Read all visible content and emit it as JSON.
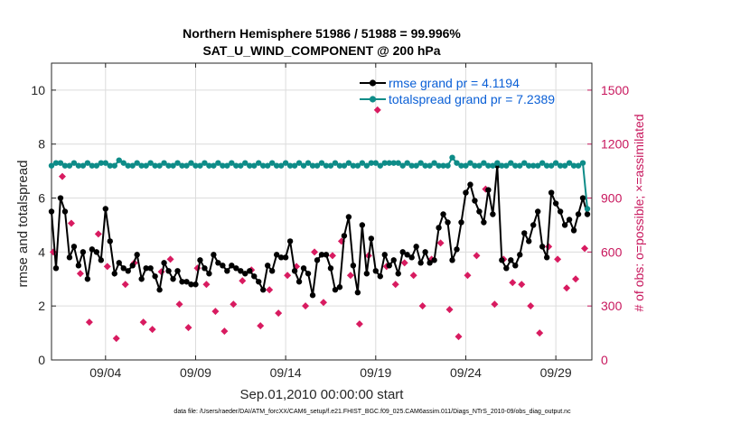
{
  "chart_data": {
    "type": "line",
    "title": "Northern Hemisphere 51986 / 51988 = 99.996%",
    "subtitle": "SAT_U_WIND_COMPONENT @ 200 hPa",
    "xlabel": "Sep.01,2010 00:00:00 start",
    "ylabel": "rmse and totalspread",
    "ylabel_right": "# of obs: o=possible; ×=assimilated",
    "xlim": [
      1,
      31.0
    ],
    "ylim": [
      0,
      11
    ],
    "ylim_right": [
      0,
      1650
    ],
    "x_ticks": [
      4,
      9,
      14,
      19,
      24,
      29
    ],
    "x_tick_labels": [
      "09/04",
      "09/09",
      "09/14",
      "09/19",
      "09/24",
      "09/29"
    ],
    "y_ticks": [
      0,
      2,
      4,
      6,
      8,
      10
    ],
    "y_ticks_right": [
      0,
      300,
      600,
      900,
      1200,
      1500
    ],
    "grid": true,
    "legend_position": "top-right",
    "footnote": "data file: /Users/raeder/DAI/ATM_forcXX/CAM6_setup/f.e21.FHIST_BGC.f09_025.CAM6assim.011/Diags_NTrS_2010-09/obs_diag_output.nc",
    "series": [
      {
        "name": "rmse grand pr = 4.1194",
        "color": "#000000",
        "marker": "circle",
        "x": [
          1.0,
          1.25,
          1.5,
          1.75,
          2.0,
          2.25,
          2.5,
          2.75,
          3.0,
          3.25,
          3.5,
          3.75,
          4.0,
          4.25,
          4.5,
          4.75,
          5.0,
          5.25,
          5.5,
          5.75,
          6.0,
          6.25,
          6.5,
          6.75,
          7.0,
          7.25,
          7.5,
          7.75,
          8.0,
          8.25,
          8.5,
          8.75,
          9.0,
          9.25,
          9.5,
          9.75,
          10.0,
          10.25,
          10.5,
          10.75,
          11.0,
          11.25,
          11.5,
          11.75,
          12.0,
          12.25,
          12.5,
          12.75,
          13.0,
          13.25,
          13.5,
          13.75,
          14.0,
          14.25,
          14.5,
          14.75,
          15.0,
          15.25,
          15.5,
          15.75,
          16.0,
          16.25,
          16.5,
          16.75,
          17.0,
          17.25,
          17.5,
          17.75,
          18.0,
          18.25,
          18.5,
          18.75,
          19.0,
          19.25,
          19.5,
          19.75,
          20.0,
          20.25,
          20.5,
          20.75,
          21.0,
          21.25,
          21.5,
          21.75,
          22.0,
          22.25,
          22.5,
          22.75,
          23.0,
          23.25,
          23.5,
          23.75,
          24.0,
          24.25,
          24.5,
          24.75,
          25.0,
          25.25,
          25.5,
          25.75,
          26.0,
          26.25,
          26.5,
          26.75,
          27.0,
          27.25,
          27.5,
          27.75,
          28.0,
          28.25,
          28.5,
          28.75,
          29.0,
          29.25,
          29.5,
          29.75,
          30.0,
          30.25,
          30.5,
          30.75
        ],
        "values": [
          5.5,
          3.4,
          6.0,
          5.5,
          3.8,
          4.2,
          3.5,
          4.0,
          3.0,
          4.1,
          4.0,
          3.7,
          5.6,
          4.4,
          3.2,
          3.6,
          3.4,
          3.3,
          3.5,
          3.9,
          3.0,
          3.4,
          3.4,
          3.1,
          2.6,
          3.6,
          3.3,
          3.0,
          3.3,
          2.9,
          2.9,
          2.8,
          2.8,
          3.7,
          3.4,
          3.2,
          3.9,
          3.6,
          3.5,
          3.3,
          3.5,
          3.4,
          3.3,
          3.2,
          3.3,
          3.1,
          2.9,
          2.6,
          3.5,
          3.3,
          3.9,
          3.8,
          3.8,
          4.4,
          3.3,
          2.9,
          3.4,
          3.2,
          2.4,
          3.7,
          3.9,
          3.9,
          3.4,
          2.6,
          2.7,
          4.6,
          5.3,
          3.5,
          2.5,
          5.0,
          3.2,
          4.5,
          3.3,
          3.1,
          3.9,
          3.5,
          3.7,
          3.2,
          4.0,
          3.9,
          3.8,
          4.2,
          3.6,
          4.0,
          3.6,
          3.7,
          4.9,
          5.4,
          5.1,
          3.7,
          4.1,
          5.1,
          6.2,
          6.5,
          5.9,
          5.5,
          5.1,
          6.3,
          5.4,
          7.2,
          3.7,
          3.4,
          3.7,
          3.5,
          3.9,
          4.7,
          4.4,
          5.0,
          5.5,
          4.2,
          3.8,
          6.2,
          5.8,
          5.5,
          5.0,
          5.2,
          4.8,
          5.4,
          6.0,
          5.4
        ],
        "sparse_values_note": ""
      },
      {
        "name": "totalspread grand pr = 7.2389",
        "color": "#0e8c88",
        "marker": "circle",
        "x": [
          1.0,
          1.25,
          1.5,
          1.75,
          2.0,
          2.25,
          2.5,
          2.75,
          3.0,
          3.25,
          3.5,
          3.75,
          4.0,
          4.25,
          4.5,
          4.75,
          5.0,
          5.25,
          5.5,
          5.75,
          6.0,
          6.25,
          6.5,
          6.75,
          7.0,
          7.25,
          7.5,
          7.75,
          8.0,
          8.25,
          8.5,
          8.75,
          9.0,
          9.25,
          9.5,
          9.75,
          10.0,
          10.25,
          10.5,
          10.75,
          11.0,
          11.25,
          11.5,
          11.75,
          12.0,
          12.25,
          12.5,
          12.75,
          13.0,
          13.25,
          13.5,
          13.75,
          14.0,
          14.25,
          14.5,
          14.75,
          15.0,
          15.25,
          15.5,
          15.75,
          16.0,
          16.25,
          16.5,
          16.75,
          17.0,
          17.25,
          17.5,
          17.75,
          18.0,
          18.25,
          18.5,
          18.75,
          19.0,
          19.25,
          19.5,
          19.75,
          20.0,
          20.25,
          20.5,
          20.75,
          21.0,
          21.25,
          21.5,
          21.75,
          22.0,
          22.25,
          22.5,
          22.75,
          23.0,
          23.25,
          23.5,
          23.75,
          24.0,
          24.25,
          24.5,
          24.75,
          25.0,
          25.25,
          25.5,
          25.75,
          26.0,
          26.25,
          26.5,
          26.75,
          27.0,
          27.25,
          27.5,
          27.75,
          28.0,
          28.25,
          28.5,
          28.75,
          29.0,
          29.25,
          29.5,
          29.75,
          30.0,
          30.25,
          30.5,
          30.75
        ],
        "values": [
          7.2,
          7.3,
          7.3,
          7.2,
          7.2,
          7.3,
          7.2,
          7.2,
          7.3,
          7.2,
          7.2,
          7.3,
          7.3,
          7.2,
          7.2,
          7.4,
          7.3,
          7.2,
          7.2,
          7.3,
          7.2,
          7.2,
          7.3,
          7.2,
          7.2,
          7.3,
          7.2,
          7.2,
          7.3,
          7.2,
          7.2,
          7.3,
          7.2,
          7.2,
          7.3,
          7.2,
          7.2,
          7.3,
          7.2,
          7.2,
          7.3,
          7.2,
          7.2,
          7.3,
          7.2,
          7.2,
          7.3,
          7.2,
          7.2,
          7.3,
          7.2,
          7.2,
          7.3,
          7.2,
          7.2,
          7.3,
          7.2,
          7.3,
          7.2,
          7.2,
          7.3,
          7.2,
          7.2,
          7.3,
          7.2,
          7.2,
          7.3,
          7.2,
          7.2,
          7.3,
          7.2,
          7.3,
          7.3,
          7.2,
          7.3,
          7.3,
          7.3,
          7.3,
          7.2,
          7.3,
          7.2,
          7.2,
          7.3,
          7.2,
          7.2,
          7.3,
          7.2,
          7.2,
          7.2,
          7.5,
          7.3,
          7.2,
          7.2,
          7.3,
          7.2,
          7.2,
          7.3,
          7.2,
          7.2,
          7.3,
          7.2,
          7.2,
          7.3,
          7.2,
          7.2,
          7.3,
          7.2,
          7.2,
          7.2,
          7.3,
          7.2,
          7.2,
          7.3,
          7.2,
          7.2,
          7.3,
          7.2,
          7.2,
          7.3,
          5.6
        ]
      }
    ],
    "scatter_series": [
      {
        "name": "",
        "axis": "right",
        "color": "#d81b60",
        "marker": "cross",
        "x": [
          1.1,
          1.6,
          2.1,
          2.6,
          3.1,
          3.6,
          4.1,
          4.6,
          5.1,
          5.6,
          6.1,
          6.6,
          7.1,
          7.6,
          8.1,
          8.6,
          9.1,
          9.6,
          10.1,
          10.6,
          11.1,
          11.6,
          12.1,
          12.6,
          13.1,
          13.6,
          14.1,
          14.6,
          15.1,
          15.6,
          16.1,
          16.6,
          17.1,
          17.6,
          18.1,
          18.6,
          19.1,
          19.6,
          20.1,
          20.6,
          21.1,
          21.6,
          22.1,
          22.6,
          23.1,
          23.6,
          24.1,
          24.6,
          25.1,
          25.6,
          26.1,
          26.6,
          27.1,
          27.6,
          28.1,
          28.6,
          29.1,
          29.6,
          30.1,
          30.6
        ],
        "values": [
          600,
          1020,
          760,
          480,
          210,
          700,
          520,
          120,
          420,
          540,
          210,
          170,
          490,
          560,
          310,
          180,
          510,
          420,
          270,
          160,
          310,
          440,
          500,
          190,
          390,
          260,
          470,
          520,
          300,
          600,
          320,
          580,
          660,
          470,
          200,
          580,
          1390,
          520,
          420,
          540,
          470,
          300,
          560,
          650,
          280,
          130,
          470,
          580,
          950,
          310,
          560,
          430,
          420,
          300,
          150,
          630,
          560,
          400,
          450,
          620
        ]
      }
    ],
    "series_extra": {
      "legend_rmse_swatch": "#000000",
      "legend_spread_swatch": "#0e8c88"
    }
  }
}
